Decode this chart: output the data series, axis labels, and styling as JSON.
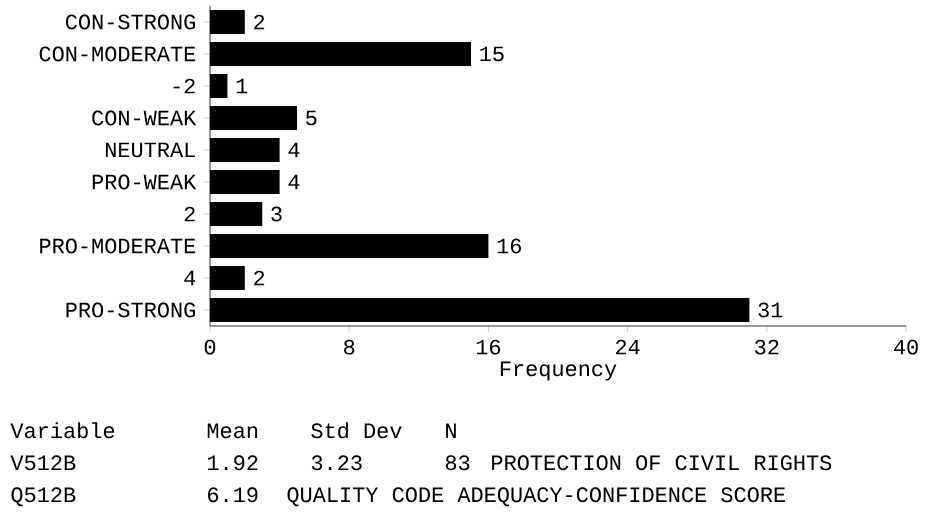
{
  "chart_data": {
    "type": "bar",
    "orientation": "horizontal",
    "categories": [
      "CON-STRONG",
      "CON-MODERATE",
      "-2",
      "CON-WEAK",
      "NEUTRAL",
      "PRO-WEAK",
      "2",
      "PRO-MODERATE",
      "4",
      "PRO-STRONG"
    ],
    "values": [
      2,
      15,
      1,
      5,
      4,
      4,
      3,
      16,
      2,
      31
    ],
    "color": "#000000",
    "xlim": [
      0,
      40
    ],
    "xticks": [
      0,
      8,
      16,
      24,
      32,
      40
    ],
    "xlabel": "Frequency",
    "data_labels": true,
    "annotations": [
      "Variable",
      "Mean",
      "Std Dev",
      "N",
      "V512B",
      "1.92",
      "3.23",
      "83",
      "PROTECTION OF CIVIL RIGHTS",
      "Q512B",
      "6.19",
      "QUALITY CODE ADEQUACY-CONFIDENCE SCORE"
    ]
  }
}
